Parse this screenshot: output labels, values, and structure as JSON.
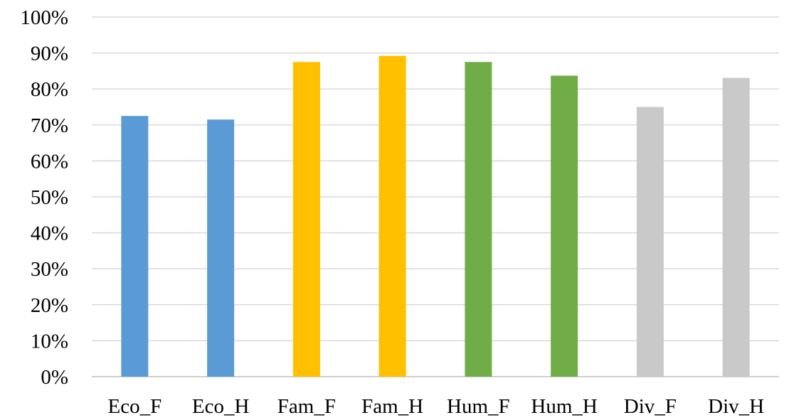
{
  "chart_data": {
    "type": "bar",
    "title": "",
    "xlabel": "",
    "ylabel": "",
    "categories": [
      "Eco_F",
      "Eco_H",
      "Fam_F",
      "Fam_H",
      "Hum_F",
      "Hum_H",
      "Div_F",
      "Div_H"
    ],
    "values": [
      72.5,
      71.5,
      87.5,
      89.2,
      87.5,
      83.7,
      75.0,
      83.1
    ],
    "bar_colors": [
      "#5B9BD5",
      "#5B9BD5",
      "#FFC000",
      "#FFC000",
      "#70AD47",
      "#70AD47",
      "#C9C9C9",
      "#C9C9C9"
    ],
    "ylim": [
      0,
      100
    ],
    "yticks": [
      0,
      10,
      20,
      30,
      40,
      50,
      60,
      70,
      80,
      90,
      100
    ],
    "ytick_labels": [
      "0%",
      "10%",
      "20%",
      "30%",
      "40%",
      "50%",
      "60%",
      "70%",
      "80%",
      "90%",
      "100%"
    ],
    "grid": true,
    "grid_color": "#D9D9D9",
    "legend": "none"
  }
}
